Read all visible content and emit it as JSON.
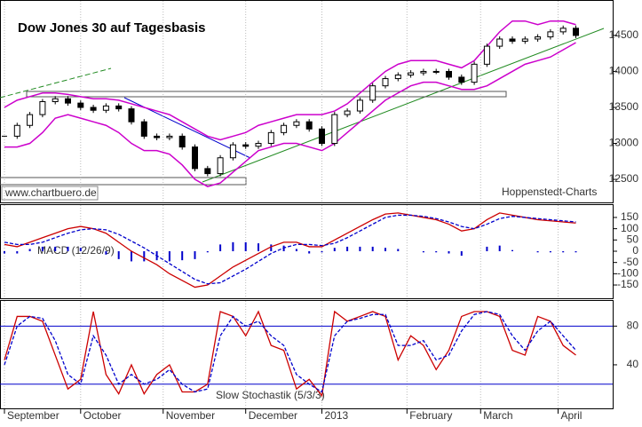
{
  "chart_data": [
    {
      "type": "candlestick",
      "title": "Dow Jones 30 auf Tagesbasis",
      "source": "www.chartbuero.de",
      "credit": "Hoppenstedt-Charts",
      "values": [
        13100,
        13250,
        13400,
        13580,
        13620,
        13560,
        13500,
        13460,
        13520,
        13480,
        13300,
        13100,
        13080,
        13100,
        12950,
        12650,
        12580,
        12800,
        12980,
        12960,
        13000,
        13150,
        13250,
        13300,
        13200,
        13000,
        13400,
        13450,
        13600,
        13800,
        13900,
        13950,
        13980,
        14000,
        14000,
        13920,
        13850,
        14100,
        14350,
        14450,
        14420,
        14450,
        14480,
        14550,
        14600,
        14500
      ],
      "bands": [
        {
          "color": "#cc00cc",
          "values": [
            13500,
            13600,
            13650,
            13700,
            13700,
            13680,
            13650,
            13620,
            13620,
            13600,
            13550,
            13500,
            13450,
            13400,
            13300,
            13200,
            13100,
            13050,
            13100,
            13150,
            13250,
            13300,
            13350,
            13400,
            13400,
            13400,
            13450,
            13550,
            13700,
            13850,
            14000,
            14100,
            14150,
            14150,
            14150,
            14100,
            14050,
            14150,
            14350,
            14550,
            14700,
            14700,
            14650,
            14700,
            14700,
            14650
          ]
        },
        {
          "color": "#cc00cc",
          "values": [
            12950,
            12950,
            13000,
            13150,
            13350,
            13400,
            13350,
            13300,
            13250,
            13150,
            13000,
            12900,
            12900,
            12850,
            12700,
            12500,
            12400,
            12450,
            12600,
            12750,
            12900,
            12950,
            13000,
            13000,
            12950,
            12900,
            13000,
            13150,
            13300,
            13450,
            13600,
            13700,
            13800,
            13850,
            13850,
            13800,
            13750,
            13750,
            13800,
            13900,
            14000,
            14100,
            14150,
            14200,
            14300,
            14400
          ]
        }
      ],
      "ylim": [
        12180,
        14980
      ],
      "yticks": [
        12500,
        13000,
        13500,
        14000,
        14500
      ]
    },
    {
      "type": "line",
      "label": "MACD (12/26/9)",
      "series": [
        {
          "color": "#cc0000",
          "dashed": false,
          "values": [
            30,
            20,
            40,
            60,
            80,
            100,
            110,
            100,
            80,
            40,
            0,
            -30,
            -60,
            -100,
            -130,
            -160,
            -150,
            -110,
            -70,
            -40,
            -10,
            20,
            40,
            40,
            20,
            20,
            50,
            80,
            110,
            140,
            165,
            170,
            160,
            150,
            140,
            120,
            90,
            100,
            140,
            170,
            160,
            150,
            140,
            135,
            130,
            125
          ]
        },
        {
          "color": "#0000cc",
          "dashed": true,
          "values": [
            40,
            30,
            30,
            40,
            60,
            80,
            95,
            100,
            95,
            75,
            45,
            15,
            -20,
            -55,
            -90,
            -125,
            -145,
            -140,
            -110,
            -80,
            -45,
            -10,
            15,
            30,
            30,
            25,
            35,
            60,
            90,
            120,
            150,
            160,
            160,
            155,
            145,
            130,
            110,
            100,
            120,
            145,
            155,
            150,
            145,
            140,
            135,
            130
          ]
        }
      ],
      "histogram": {
        "color": "#0000cc",
        "values": [
          -10,
          -10,
          10,
          20,
          20,
          20,
          15,
          0,
          -15,
          -35,
          -45,
          -45,
          -40,
          -45,
          -40,
          -35,
          -5,
          30,
          40,
          40,
          35,
          30,
          25,
          10,
          -10,
          -5,
          15,
          20,
          20,
          20,
          15,
          10,
          0,
          -5,
          -5,
          -10,
          -20,
          0,
          20,
          25,
          5,
          0,
          -5,
          -5,
          -5,
          -5
        ]
      },
      "ylim": [
        -209,
        205
      ],
      "yticks": [
        -150,
        -100,
        -50,
        0,
        50,
        100,
        150
      ]
    },
    {
      "type": "line",
      "label": "Slow Stochastik (5/3/3)",
      "series": [
        {
          "color": "#cc0000",
          "dashed": false,
          "values": [
            45,
            90,
            90,
            85,
            50,
            15,
            25,
            95,
            30,
            10,
            40,
            10,
            30,
            40,
            12,
            12,
            20,
            95,
            90,
            70,
            95,
            60,
            55,
            15,
            25,
            8,
            95,
            85,
            90,
            95,
            90,
            45,
            70,
            60,
            35,
            55,
            90,
            95,
            95,
            90,
            55,
            50,
            90,
            85,
            60,
            50
          ]
        },
        {
          "color": "#0000cc",
          "dashed": true,
          "values": [
            40,
            80,
            90,
            88,
            65,
            30,
            20,
            70,
            50,
            20,
            30,
            20,
            25,
            35,
            20,
            12,
            15,
            70,
            90,
            80,
            85,
            70,
            60,
            30,
            20,
            12,
            70,
            85,
            88,
            92,
            92,
            60,
            60,
            65,
            45,
            50,
            75,
            92,
            95,
            92,
            70,
            55,
            75,
            85,
            70,
            55
          ]
        }
      ],
      "hlines": [
        80,
        20
      ],
      "hline_color": "#0000cc",
      "ylim": [
        -5,
        106
      ],
      "yticks": [
        40,
        80
      ],
      "xticks": [
        {
          "value": 0,
          "label": "September"
        },
        {
          "value": 6,
          "label": "October"
        },
        {
          "value": 12.5,
          "label": "November"
        },
        {
          "value": 19,
          "label": "December"
        },
        {
          "value": 25,
          "label": "2013"
        },
        {
          "value": 31.7,
          "label": "February"
        },
        {
          "value": 37.5,
          "label": "March"
        },
        {
          "value": 43.6,
          "label": "April"
        }
      ]
    }
  ]
}
